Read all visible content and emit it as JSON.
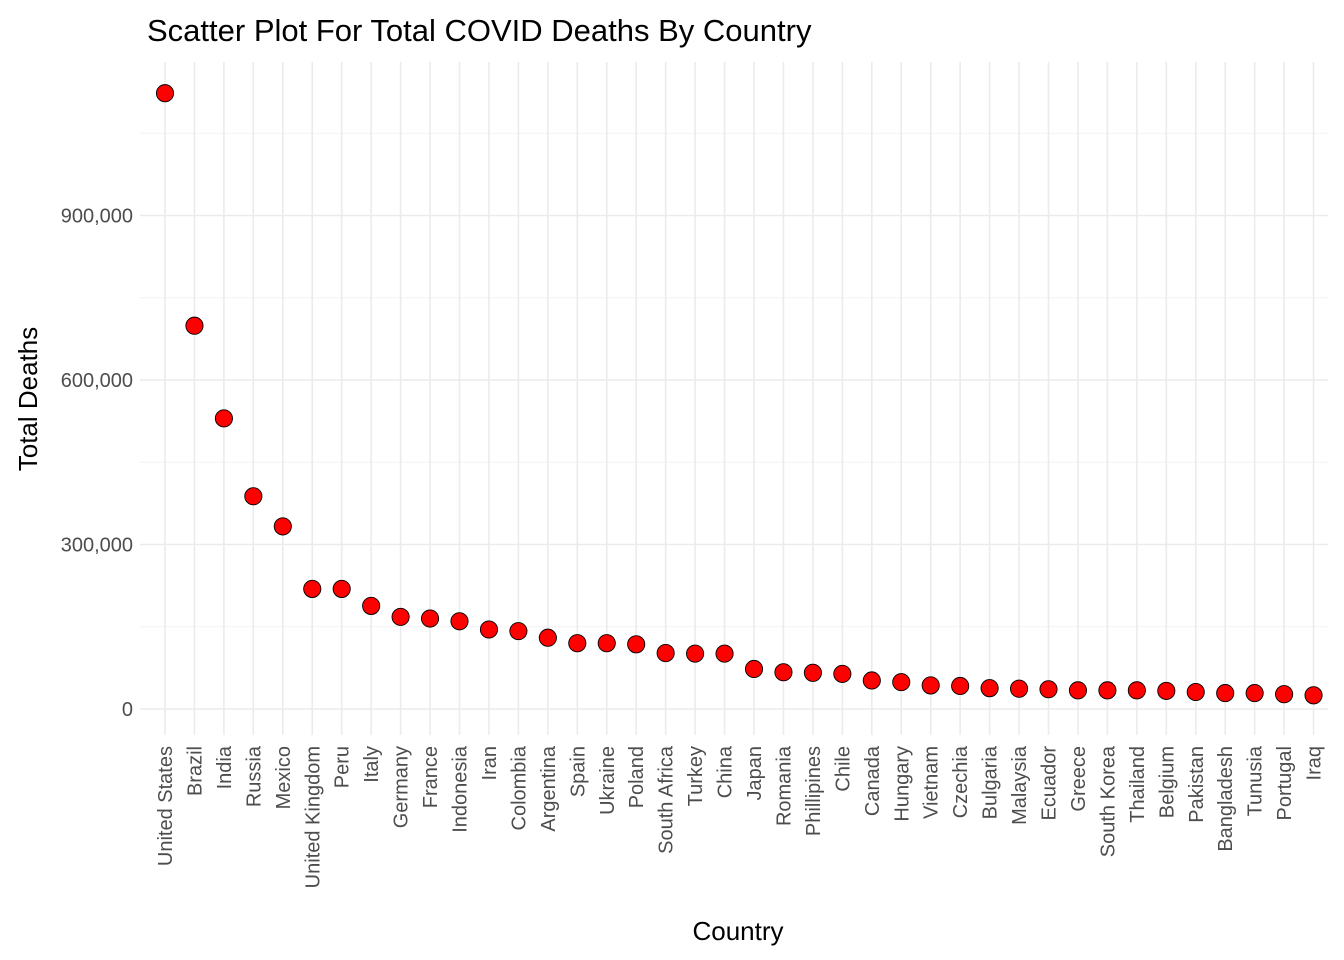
{
  "chart_data": {
    "type": "scatter",
    "title": "Scatter Plot For Total COVID Deaths By Country",
    "xlabel": "Country",
    "ylabel": "Total Deaths",
    "ylim": [
      -50000,
      1150000
    ],
    "y_major_ticks": [
      0,
      300000,
      600000,
      900000
    ],
    "y_minor_ticks": [
      150000,
      450000,
      750000,
      1050000
    ],
    "y_tick_labels": [
      "0",
      "300,000",
      "600,000",
      "900,000"
    ],
    "grid": true,
    "legend": "none",
    "point_color": "#ff0000",
    "categories": [
      "United States",
      "Brazil",
      "India",
      "Russia",
      "Mexico",
      "United Kingdom",
      "Peru",
      "Italy",
      "Germany",
      "France",
      "Indonesia",
      "Iran",
      "Colombia",
      "Argentina",
      "Spain",
      "Ukraine",
      "Poland",
      "South Africa",
      "Turkey",
      "China",
      "Japan",
      "Romania",
      "Phillipines",
      "Chile",
      "Canada",
      "Hungary",
      "Vietnam",
      "Czechia",
      "Bulgaria",
      "Malaysia",
      "Ecuador",
      "Greece",
      "South Korea",
      "Thailand",
      "Belgium",
      "Pakistan",
      "Bangladesh",
      "Tunusia",
      "Portugal",
      "Iraq"
    ],
    "values": [
      1123000,
      699000,
      530000,
      388000,
      333000,
      219000,
      219000,
      188000,
      168000,
      165000,
      160000,
      145000,
      142000,
      130000,
      120000,
      120000,
      118000,
      102000,
      101000,
      101000,
      73000,
      67000,
      66000,
      64000,
      52000,
      49000,
      43000,
      42000,
      38000,
      37000,
      36000,
      34000,
      34000,
      34000,
      33000,
      31000,
      29000,
      29000,
      27000,
      25000
    ]
  }
}
